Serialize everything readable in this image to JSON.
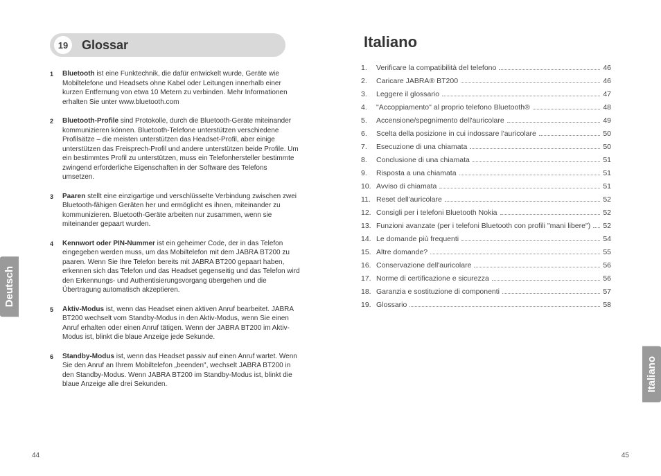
{
  "left": {
    "badge": "19",
    "title": "Glossar",
    "sideTab": "Deutsch",
    "pageNumber": "44",
    "items": [
      {
        "num": "1",
        "term": "Bluetooth",
        "body": " ist eine Funktechnik, die dafür entwickelt wurde, Geräte wie Mobiltelefone und Headsets ohne Kabel oder Leitungen innerhalb einer kurzen Entfernung von etwa 10 Metern zu verbinden. Mehr Informationen erhalten Sie unter www.bluetooth.com"
      },
      {
        "num": "2",
        "term": "Bluetooth-Profile",
        "body": " sind Protokolle, durch die Bluetooth-Geräte miteinander kommunizieren können. Bluetooth-Telefone unterstützen verschiedene Profilsätze – die meisten unterstützen das Headset-Profil, aber einige unterstützen das Freisprech-Profil und andere unterstützen beide Profile. Um ein bestimmtes Profil zu unterstützen, muss ein Telefonhersteller bestimmte zwingend erforderliche Eigenschaften in der Software des Telefons umsetzen."
      },
      {
        "num": "3",
        "term": "Paaren",
        "body": " stellt eine einzigartige und verschlüsselte Verbindung zwischen zwei Bluetooth-fähigen Geräten her und ermöglicht es ihnen, miteinander zu kommunizieren. Bluetooth-Geräte arbeiten nur zusammen, wenn sie miteinander gepaart wurden."
      },
      {
        "num": "4",
        "term": "Kennwort oder PIN-Nummer",
        "body": " ist ein geheimer Code, der in das Telefon eingegeben werden muss, um das Mobiltelefon mit dem JABRA BT200 zu paaren. Wenn Sie Ihre Telefon bereits mit JABRA BT200 gepaart haben, erkennen sich das Telefon und das Headset gegenseitig und das Telefon wird den Erkennungs- und Authentisierungsvorgang übergehen und die Übertragung automatisch akzeptieren."
      },
      {
        "num": "5",
        "term": "Aktiv-Modus",
        "body": " ist, wenn das Headset einen aktiven Anruf bearbeitet. JABRA BT200 wechselt vom Standby-Modus in den Aktiv-Modus, wenn Sie einen Anruf erhalten oder einen Anruf tätigen. Wenn der JABRA BT200 im Aktiv-Modus ist, blinkt die blaue Anzeige jede Sekunde."
      },
      {
        "num": "6",
        "term": "Standby-Modus",
        "body": " ist, wenn das Headset passiv auf einen Anruf wartet. Wenn Sie den Anruf an Ihrem Mobiltelefon „beenden\", wechselt JABRA BT200 in den Standby-Modus. Wenn JABRA BT200 im Standby-Modus ist, blinkt die blaue Anzeige alle drei Sekunden."
      }
    ]
  },
  "right": {
    "title": "Italiano",
    "sideTab": "Italiano",
    "pageNumber": "45",
    "toc": [
      {
        "num": "1.",
        "label": "Verificare la compatibilità del telefono",
        "page": "46"
      },
      {
        "num": "2.",
        "label": "Caricare JABRA® BT200",
        "page": "46"
      },
      {
        "num": "3.",
        "label": "Leggere il glossario",
        "page": "47"
      },
      {
        "num": "4.",
        "label": "\"Accoppiamento\" al proprio telefono Bluetooth®",
        "page": "48"
      },
      {
        "num": "5.",
        "label": "Accensione/spegnimento dell'auricolare",
        "page": "49"
      },
      {
        "num": "6.",
        "label": "Scelta della posizione in cui indossare l'auricolare",
        "page": "50"
      },
      {
        "num": "7.",
        "label": "Esecuzione di una chiamata",
        "page": "50"
      },
      {
        "num": "8.",
        "label": "Conclusione di una chiamata",
        "page": "51"
      },
      {
        "num": "9.",
        "label": "Risposta a una chiamata",
        "page": "51"
      },
      {
        "num": "10.",
        "label": "Avviso di chiamata",
        "page": "51"
      },
      {
        "num": "11.",
        "label": "Reset dell'auricolare",
        "page": "52"
      },
      {
        "num": "12.",
        "label": "Consigli per i telefoni Bluetooth Nokia",
        "page": "52"
      },
      {
        "num": "13.",
        "label": "Funzioni avanzate (per i telefoni Bluetooth con profili \"mani libere\")",
        "page": "52"
      },
      {
        "num": "14.",
        "label": "Le domande più frequenti",
        "page": "54"
      },
      {
        "num": "15.",
        "label": "Altre domande?",
        "page": "55"
      },
      {
        "num": "16.",
        "label": "Conservazione dell'auricolare",
        "page": "56"
      },
      {
        "num": "17.",
        "label": "Norme di certificazione e sicurezza",
        "page": "56"
      },
      {
        "num": "18.",
        "label": "Garanzia e sostituzione di componenti",
        "page": "57"
      },
      {
        "num": "19.",
        "label": "Glossario",
        "page": "58"
      }
    ]
  }
}
